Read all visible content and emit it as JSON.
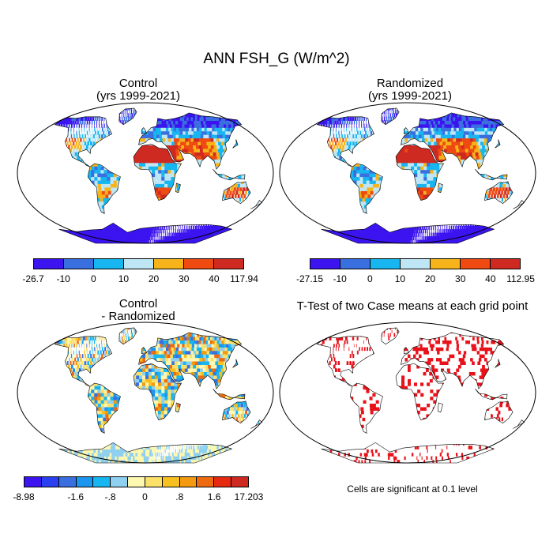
{
  "chart_data": [
    {
      "type": "heatmap",
      "panel": "control",
      "title": "Control",
      "subtitle": "(yrs 1999-2021)",
      "colorbar": {
        "colors": [
          "#3b14f0",
          "#3a6fe0",
          "#17b6f0",
          "#bfe6f5",
          "#f6b41a",
          "#ee4a12",
          "#cf2a22"
        ],
        "tick_labels": [
          "-26.7",
          "-10",
          "0",
          "10",
          "20",
          "30",
          "40",
          "117.94"
        ],
        "min": -26.7,
        "max": 117.94
      }
    },
    {
      "type": "heatmap",
      "panel": "randomized",
      "title": "Randomized",
      "subtitle": "(yrs 1999-2021)",
      "colorbar": {
        "colors": [
          "#3b14f0",
          "#3a6fe0",
          "#17b6f0",
          "#bfe6f5",
          "#f6b41a",
          "#ee4a12",
          "#cf2a22"
        ],
        "tick_labels": [
          "-27.15",
          "-10",
          "0",
          "10",
          "20",
          "30",
          "40",
          "112.95"
        ],
        "min": -27.15,
        "max": 112.95
      }
    },
    {
      "type": "heatmap",
      "panel": "difference",
      "title": "Control",
      "subtitle": "- Randomized",
      "colorbar": {
        "colors": [
          "#3b14f0",
          "#2a40f0",
          "#3a6fe0",
          "#1a96ee",
          "#17b6f0",
          "#8fd0f0",
          "#fdf7b0",
          "#fbe06a",
          "#f6c020",
          "#f39a10",
          "#ee6a10",
          "#e62a10",
          "#cf2a22"
        ],
        "tick_labels": [
          "-8.98",
          "",
          "",
          "-1.6",
          "",
          "-.8",
          "",
          "0",
          "",
          ".8",
          "",
          "1.6",
          "",
          "17.203"
        ],
        "min": -8.98,
        "max": 17.203
      }
    },
    {
      "type": "heatmap",
      "panel": "ttest",
      "title": "T-Test of two Case means at each grid point",
      "note": "Cells are significant at 0.1 level",
      "significance_level": 0.1,
      "significant_color": "#e8121a"
    }
  ],
  "figure": {
    "title": "ANN FSH_G (W/m^2)"
  }
}
